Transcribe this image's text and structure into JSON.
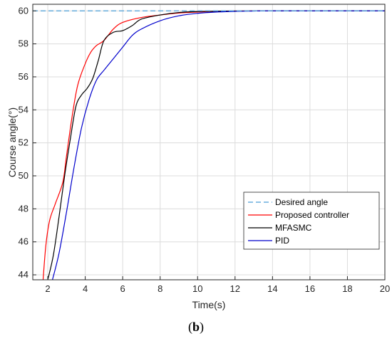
{
  "chart_data": {
    "type": "line",
    "xlabel": "Time(s)",
    "ylabel": "Course angle(°)",
    "xlim": [
      1.2,
      20
    ],
    "ylim": [
      43.7,
      60.4
    ],
    "xticks": [
      2,
      4,
      6,
      8,
      10,
      12,
      14,
      16,
      18,
      20
    ],
    "yticks": [
      44,
      46,
      48,
      50,
      52,
      54,
      56,
      58,
      60
    ],
    "grid": true,
    "legend_position": "bottom-right",
    "caption_open": "(",
    "caption_letter": "b",
    "caption_close": ")",
    "series": [
      {
        "name": "Desired angle",
        "color": "#4a9ed6",
        "dash": "dashed",
        "x": [
          1.2,
          20
        ],
        "y": [
          60,
          60
        ]
      },
      {
        "name": "Proposed controller",
        "color": "#ff0000",
        "dash": "solid",
        "x": [
          1.75,
          1.9,
          2.1,
          2.4,
          2.8,
          3.0,
          3.3,
          3.6,
          4.0,
          4.3,
          4.6,
          5.0,
          5.5,
          6.0,
          7.0,
          8.0,
          9.0,
          10.0,
          11.0,
          12.0,
          14.0,
          20.0
        ],
        "y": [
          43.7,
          45.8,
          47.3,
          48.3,
          49.6,
          51.2,
          53.6,
          55.5,
          56.8,
          57.5,
          57.9,
          58.2,
          58.9,
          59.3,
          59.6,
          59.75,
          59.87,
          59.93,
          59.97,
          59.99,
          60.0,
          60.0
        ]
      },
      {
        "name": "MFASMC",
        "color": "#000000",
        "dash": "solid",
        "x": [
          2.0,
          2.3,
          2.6,
          2.9,
          3.2,
          3.5,
          3.8,
          4.1,
          4.4,
          4.7,
          5.0,
          5.5,
          6.0,
          6.5,
          7.0,
          8.0,
          9.0,
          10.0,
          11.0,
          12.0,
          14.0,
          20.0
        ],
        "y": [
          43.7,
          45.2,
          47.5,
          50.0,
          52.2,
          54.2,
          54.9,
          55.3,
          55.9,
          57.0,
          58.2,
          58.7,
          58.8,
          59.1,
          59.5,
          59.75,
          59.9,
          59.96,
          59.98,
          59.99,
          60.0,
          60.0
        ]
      },
      {
        "name": "PID",
        "color": "#0000cc",
        "dash": "solid",
        "x": [
          2.25,
          2.6,
          3.0,
          3.4,
          3.8,
          4.2,
          4.6,
          5.0,
          5.5,
          6.0,
          6.5,
          7.0,
          8.0,
          9.0,
          10.0,
          11.0,
          12.0,
          13.0,
          14.0,
          20.0
        ],
        "y": [
          43.7,
          45.3,
          47.8,
          50.5,
          52.9,
          54.6,
          55.8,
          56.4,
          57.1,
          57.8,
          58.5,
          58.9,
          59.4,
          59.7,
          59.85,
          59.93,
          59.97,
          59.99,
          60.0,
          60.0
        ]
      }
    ]
  }
}
